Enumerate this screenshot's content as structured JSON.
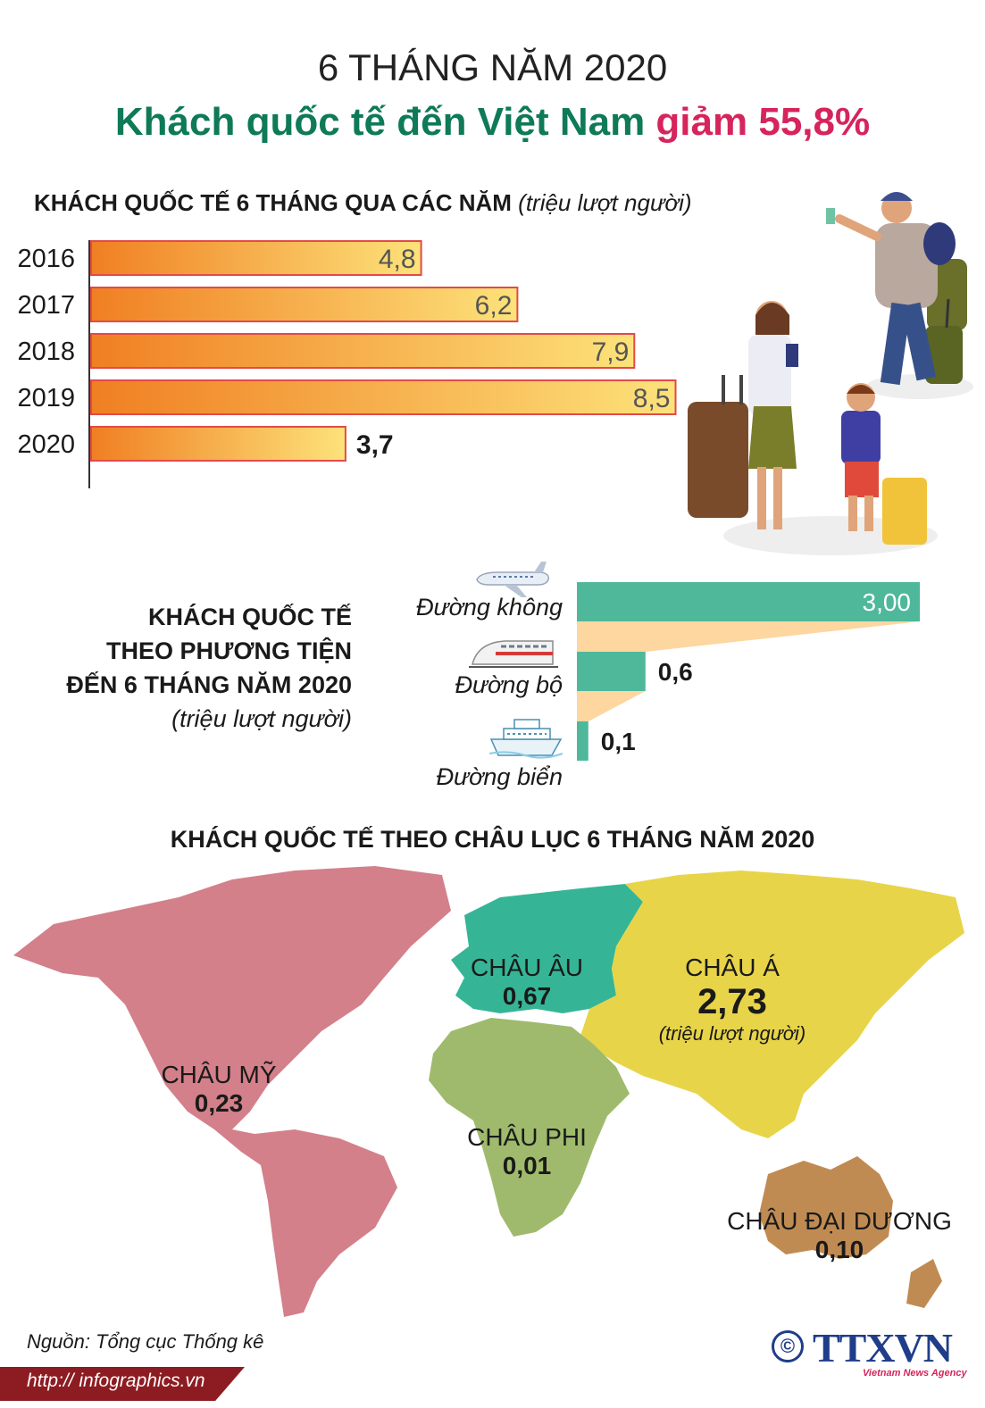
{
  "header": {
    "period": "6 THÁNG NĂM 2020",
    "headline_main": "Khách quốc tế đến Việt Nam",
    "headline_change": "giảm 55,8%"
  },
  "yearly": {
    "title": "KHÁCH QUỐC TẾ 6 THÁNG QUA CÁC NĂM",
    "unit": "(triệu lượt người)"
  },
  "transport": {
    "title_lines": [
      "KHÁCH QUỐC TẾ",
      "THEO PHƯƠNG TIỆN",
      "ĐẾN 6 THÁNG NĂM 2020"
    ],
    "unit": "(triệu lượt người)"
  },
  "continents": {
    "title": "KHÁCH QUỐC TẾ THEO CHÂU LỤC 6 THÁNG NĂM 2020",
    "unit": "(triệu lượt người)"
  },
  "chart_data": [
    {
      "type": "bar",
      "orientation": "horizontal",
      "title": "KHÁCH QUỐC TẾ 6 THÁNG QUA CÁC NĂM",
      "categories": [
        "2016",
        "2017",
        "2018",
        "2019",
        "2020"
      ],
      "values": [
        4.8,
        6.2,
        7.9,
        8.5,
        3.7
      ],
      "value_labels": [
        "4,8",
        "6,2",
        "7,9",
        "8,5",
        "3,7"
      ],
      "unit": "(triệu lượt người)",
      "colors": {
        "bar_start": "#f07f22",
        "bar_end": "#fde27a",
        "bar_border": "#e24a4a"
      }
    },
    {
      "type": "bar",
      "orientation": "horizontal",
      "title": "KHÁCH QUỐC TẾ THEO PHƯƠNG TIỆN ĐẾN 6 THÁNG NĂM 2020",
      "categories": [
        "Đường không",
        "Đường bộ",
        "Đường biển"
      ],
      "values": [
        3.0,
        0.6,
        0.1
      ],
      "value_labels": [
        "3,00",
        "0,6",
        "0,1"
      ],
      "icons": [
        "airplane-icon",
        "train-icon",
        "ship-icon"
      ],
      "unit": "(triệu lượt người)",
      "colors": {
        "bar": "#4fb89b",
        "funnel": "#fdd6a0"
      }
    },
    {
      "type": "table",
      "title": "KHÁCH QUỐC TẾ THEO CHÂU LỤC 6 THÁNG NĂM 2020",
      "regions": [
        {
          "name": "CHÂU Á",
          "value": 2.73,
          "label": "2,73",
          "color": "#e8d448"
        },
        {
          "name": "CHÂU ÂU",
          "value": 0.67,
          "label": "0,67",
          "color": "#36b596"
        },
        {
          "name": "CHÂU MỸ",
          "value": 0.23,
          "label": "0,23",
          "color": "#d3808a"
        },
        {
          "name": "CHÂU ĐẠI DƯƠNG",
          "value": 0.1,
          "label": "0,10",
          "color": "#c08b52"
        },
        {
          "name": "CHÂU PHI",
          "value": 0.01,
          "label": "0,01",
          "color": "#9fba6c"
        }
      ],
      "unit": "(triệu lượt người)"
    }
  ],
  "footer": {
    "source": "Nguồn: Tổng cục Thống kê",
    "url": "http:// infographics.vn",
    "copyright": "©",
    "logo": "TTXVN",
    "logo_sub": "Vietnam News Agency"
  }
}
